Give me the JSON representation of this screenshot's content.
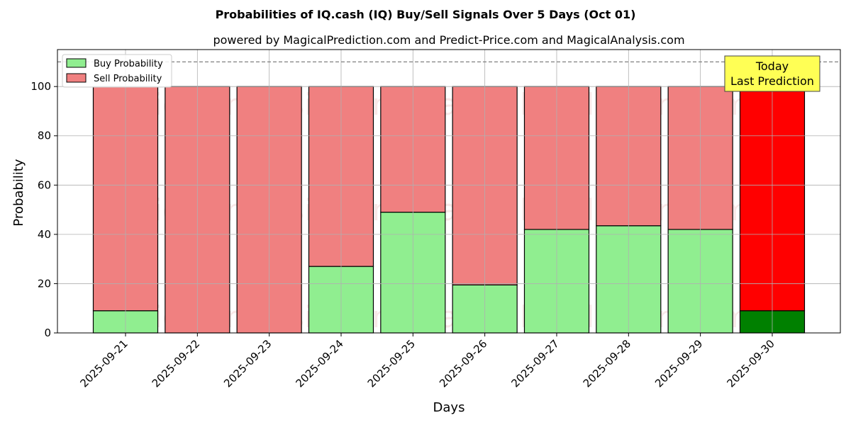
{
  "chart_data": {
    "type": "bar",
    "stacked": true,
    "title": "Probabilities of IQ.cash (IQ) Buy/Sell Signals Over 5 Days (Oct 01)",
    "subtitle": "powered by MagicalPrediction.com and Predict-Price.com and MagicalAnalysis.com",
    "xlabel": "Days",
    "ylabel": "Probability",
    "ylim": [
      0,
      115
    ],
    "yticks": [
      0,
      20,
      40,
      60,
      80,
      100
    ],
    "grid": true,
    "reference_line": 110,
    "categories": [
      "2025-09-21",
      "2025-09-22",
      "2025-09-23",
      "2025-09-24",
      "2025-09-25",
      "2025-09-26",
      "2025-09-27",
      "2025-09-28",
      "2025-09-29",
      "2025-09-30"
    ],
    "series": [
      {
        "name": "Buy Probability",
        "color": "#90ee90",
        "last_color": "#008000",
        "values": [
          9,
          0,
          0,
          27,
          49,
          19.5,
          42,
          43.5,
          42,
          9
        ]
      },
      {
        "name": "Sell Probability",
        "color": "#f08080",
        "last_color": "#ff0000",
        "values": [
          91,
          100,
          100,
          73,
          51,
          80.5,
          58,
          56.5,
          58,
          91
        ]
      }
    ],
    "legend_position": "top-left",
    "annotation": {
      "lines": [
        "Today",
        "Last Prediction"
      ],
      "category": "2025-09-30",
      "background": "#ffff55"
    },
    "watermarks": [
      "MagicalAnalysis.com",
      "MagicalPrediction.com"
    ]
  }
}
